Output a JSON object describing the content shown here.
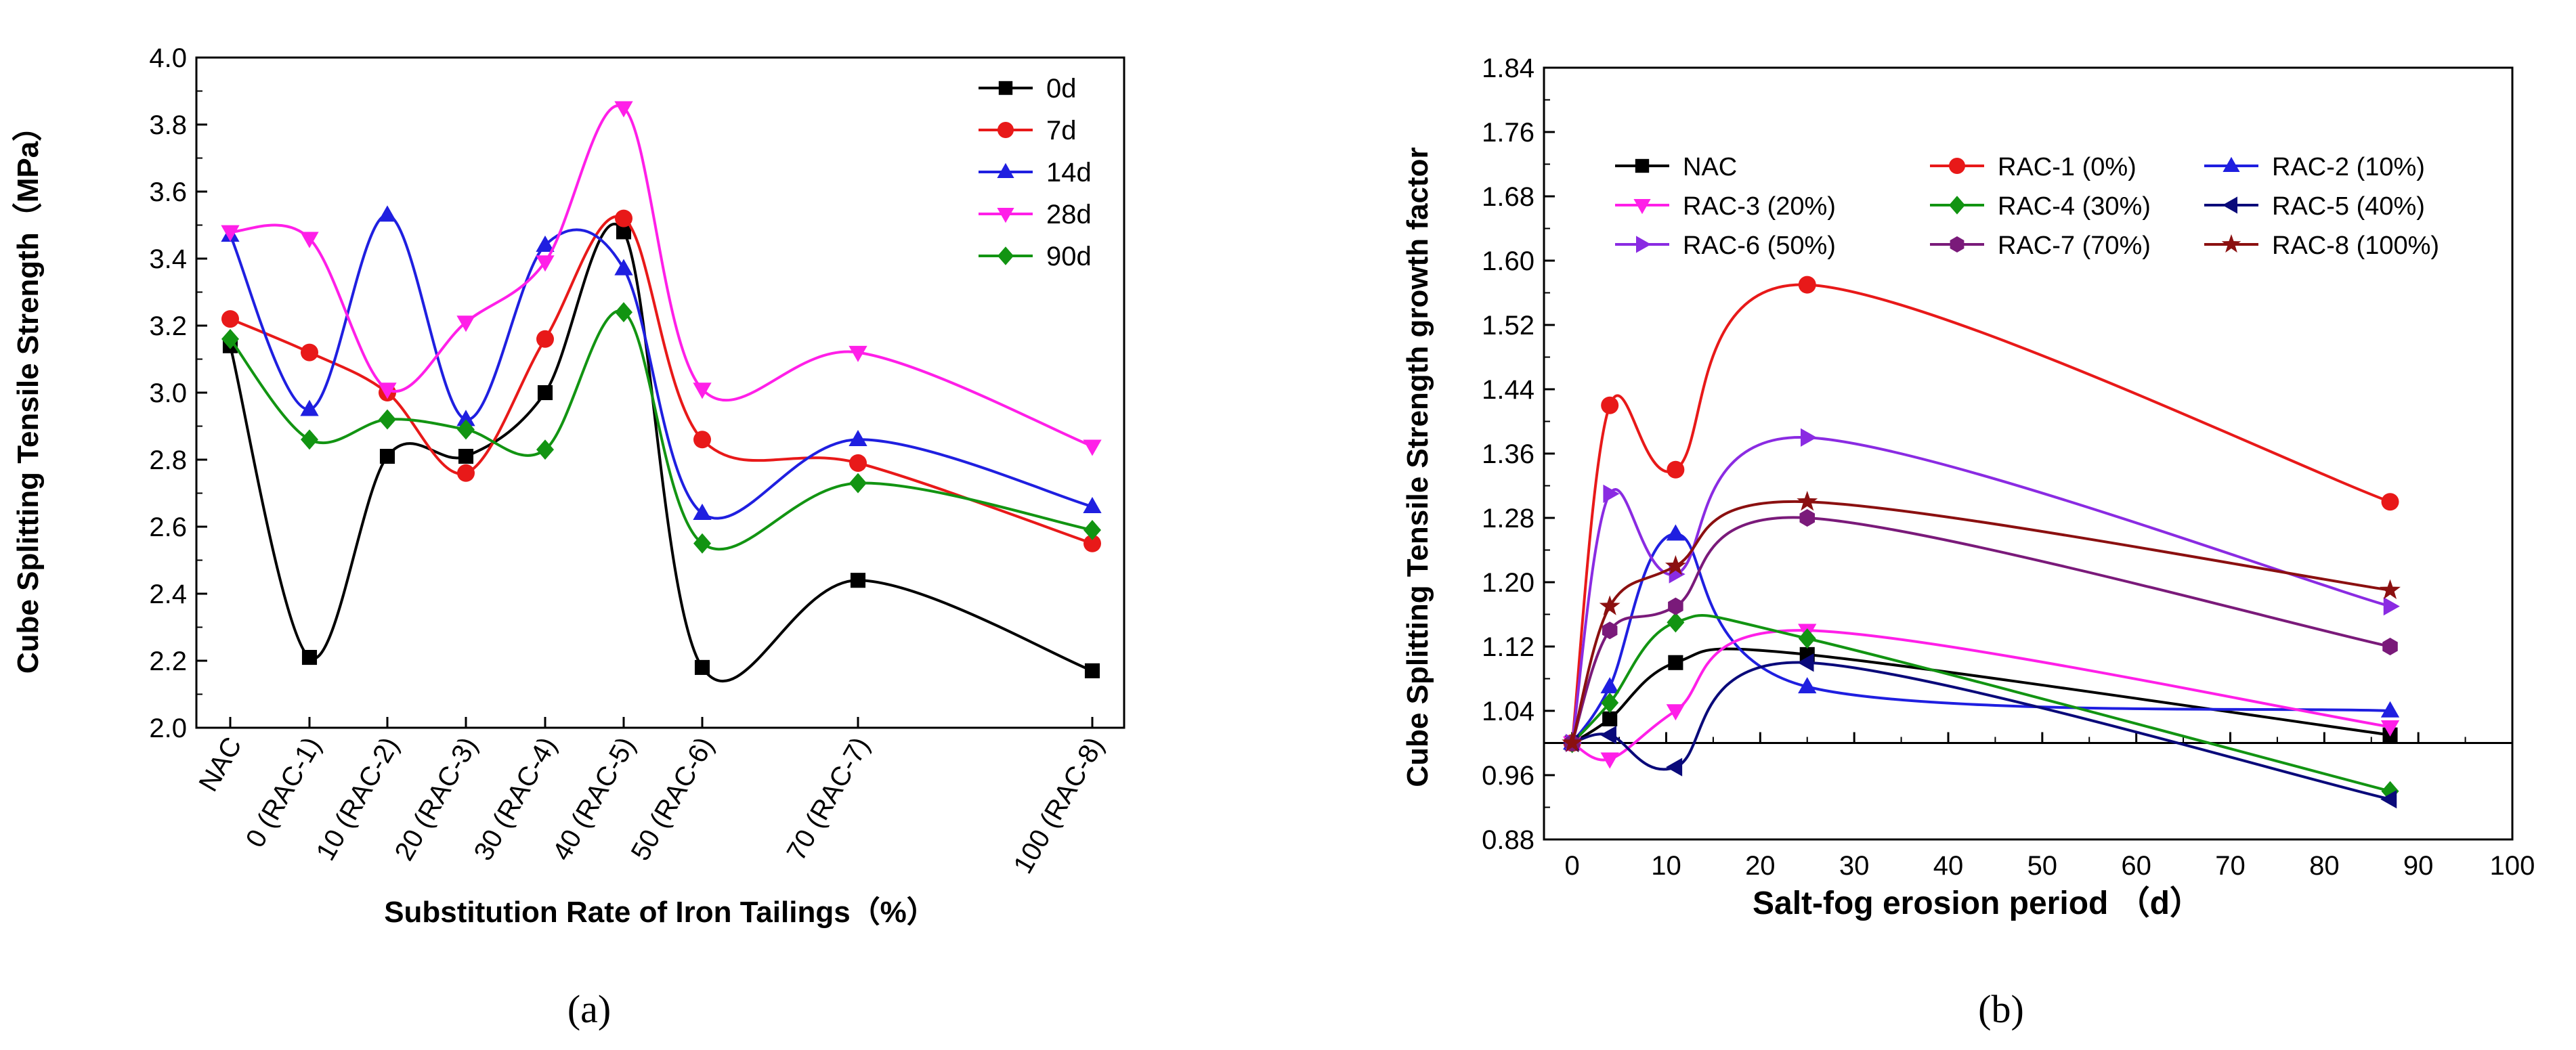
{
  "chart_data": [
    {
      "panel": "(a)",
      "panel_letter": "a",
      "type": "scatter",
      "title": "",
      "xlabel": "Substitution Rate of Iron Tailings（%）",
      "ylabel": "Cube Splitting Tensile Strength（MPa）",
      "categories": [
        "NAC",
        "0 (RAC-1)",
        "10 (RAC-2)",
        "20 (RAC-3)",
        "30 (RAC-4)",
        "40 (RAC-5)",
        "50 (RAC-6)",
        "70 (RAC-7)",
        "100 (RAC-8)"
      ],
      "ylim": [
        2.0,
        4.0
      ],
      "yticks": [
        "2.0",
        "2.2",
        "2.4",
        "2.6",
        "2.8",
        "3.0",
        "3.2",
        "3.4",
        "3.6",
        "3.8",
        "4.0"
      ],
      "legend_position": "top-right",
      "series": [
        {
          "name": "0d",
          "color": "#000000",
          "marker": "square",
          "values": [
            3.14,
            2.21,
            2.81,
            2.81,
            3.0,
            3.48,
            2.18,
            2.44,
            2.17
          ]
        },
        {
          "name": "7d",
          "color": "#e81919",
          "marker": "circle",
          "values": [
            3.22,
            3.12,
            3.0,
            2.76,
            3.16,
            3.52,
            2.86,
            2.79,
            2.55
          ]
        },
        {
          "name": "14d",
          "color": "#1f1fe0",
          "marker": "triangle",
          "values": [
            3.47,
            2.95,
            3.53,
            2.92,
            3.44,
            3.37,
            2.64,
            2.86,
            2.66
          ]
        },
        {
          "name": "28d",
          "color": "#ff1fe8",
          "marker": "tri-down",
          "values": [
            3.48,
            3.46,
            3.01,
            3.21,
            3.39,
            3.85,
            3.01,
            3.12,
            2.84
          ]
        },
        {
          "name": "90d",
          "color": "#129412",
          "marker": "diamond",
          "values": [
            3.16,
            2.86,
            2.92,
            2.89,
            2.83,
            3.24,
            2.55,
            2.73,
            2.59
          ]
        }
      ]
    },
    {
      "panel": "(b)",
      "panel_letter": "b",
      "type": "scatter",
      "title": "",
      "xlabel": "Salt-fog erosion period （d）",
      "ylabel": "Cube Splitting Tensile Strength growth factor",
      "xlim": [
        -3,
        100
      ],
      "ylim": [
        0.88,
        1.84
      ],
      "xticks": [
        "0",
        "10",
        "20",
        "30",
        "40",
        "50",
        "60",
        "70",
        "80",
        "90",
        "100"
      ],
      "yticks": [
        "0.88",
        "0.96",
        "1.04",
        "1.12",
        "1.20",
        "1.28",
        "1.36",
        "1.44",
        "1.52",
        "1.60",
        "1.68",
        "1.76",
        "1.84"
      ],
      "x": [
        0,
        4,
        11,
        25,
        87
      ],
      "legend_position": "top",
      "series": [
        {
          "name": "NAC",
          "color": "#000000",
          "marker": "square",
          "values": [
            1.0,
            1.03,
            1.1,
            1.11,
            1.01
          ]
        },
        {
          "name": "RAC-1 (0%)",
          "color": "#e81919",
          "marker": "circle",
          "values": [
            1.0,
            1.42,
            1.34,
            1.57,
            1.3
          ]
        },
        {
          "name": "RAC-2 (10%)",
          "color": "#1f1fe0",
          "marker": "triangle",
          "values": [
            1.0,
            1.07,
            1.26,
            1.07,
            1.04
          ]
        },
        {
          "name": "RAC-3 (20%)",
          "color": "#ff1fe8",
          "marker": "tri-down",
          "values": [
            1.0,
            0.98,
            1.04,
            1.14,
            1.02
          ]
        },
        {
          "name": "RAC-4 (30%)",
          "color": "#129412",
          "marker": "diamond",
          "values": [
            1.0,
            1.05,
            1.15,
            1.13,
            0.94
          ]
        },
        {
          "name": "RAC-5 (40%)",
          "color": "#0a0a7a",
          "marker": "tri-left",
          "values": [
            1.0,
            1.01,
            0.97,
            1.1,
            0.93
          ]
        },
        {
          "name": "RAC-6 (50%)",
          "color": "#8a2be2",
          "marker": "tri-right",
          "values": [
            1.0,
            1.31,
            1.21,
            1.38,
            1.17
          ]
        },
        {
          "name": "RAC-7 (70%)",
          "color": "#7a1a7a",
          "marker": "hexagon",
          "values": [
            1.0,
            1.14,
            1.17,
            1.28,
            1.12
          ]
        },
        {
          "name": "RAC-8 (100%)",
          "color": "#8b1010",
          "marker": "star",
          "values": [
            1.0,
            1.17,
            1.22,
            1.3,
            1.19
          ]
        }
      ]
    }
  ]
}
